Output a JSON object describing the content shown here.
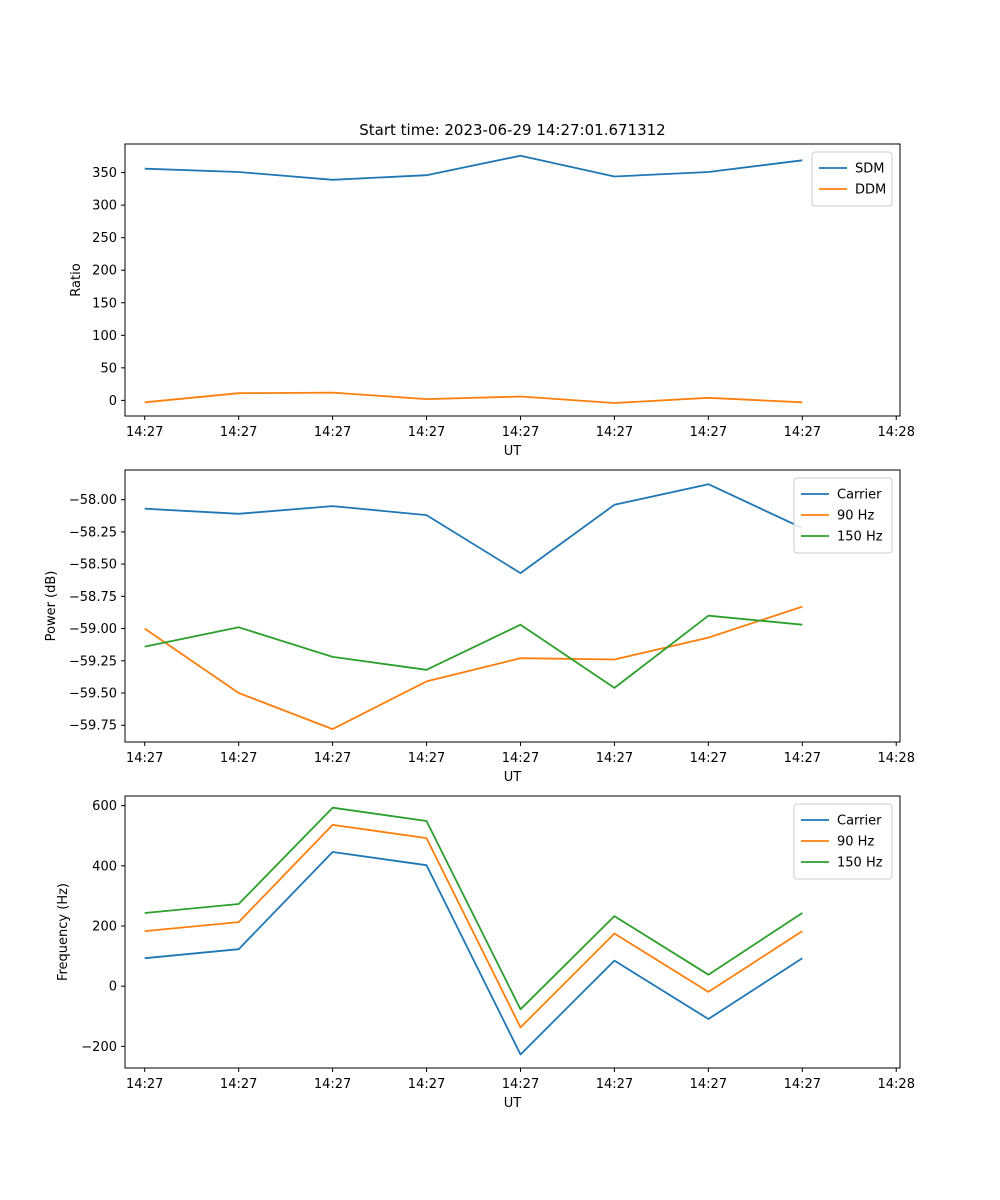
{
  "figure_title": "Start time: 2023-06-29 14:27:01.671312",
  "colors": {
    "c0": "#1f77b4",
    "c1": "#ff7f0e",
    "c2": "#2ca02c"
  },
  "chart_data": [
    {
      "type": "line",
      "title": "Start time: 2023-06-29 14:27:01.671312",
      "xlabel": "UT",
      "ylabel": "Ratio",
      "x": [
        1,
        2,
        3,
        4,
        5,
        6,
        7,
        8
      ],
      "xlim": [
        0.79,
        9.04
      ],
      "x_ticks": [
        1,
        2,
        3,
        4,
        5,
        6,
        7,
        8,
        9
      ],
      "x_tick_labels": [
        "14:27",
        "14:27",
        "14:27",
        "14:27",
        "14:27",
        "14:27",
        "14:27",
        "14:27",
        "14:28"
      ],
      "ylim": [
        -24,
        394
      ],
      "y_ticks": [
        0,
        50,
        100,
        150,
        200,
        250,
        300,
        350
      ],
      "y_tick_labels": [
        "0",
        "50",
        "100",
        "150",
        "200",
        "250",
        "300",
        "350"
      ],
      "legend_position": "top-right",
      "series": [
        {
          "name": "SDM",
          "color": "#1f77b4",
          "values": [
            356,
            351,
            339,
            346,
            376,
            344,
            351,
            369
          ]
        },
        {
          "name": "DDM",
          "color": "#ff7f0e",
          "values": [
            -3,
            11,
            12,
            2,
            6,
            -4,
            4,
            -3
          ]
        }
      ]
    },
    {
      "type": "line",
      "title": "",
      "xlabel": "UT",
      "ylabel": "Power (dB)",
      "x": [
        1,
        2,
        3,
        4,
        5,
        6,
        7,
        8
      ],
      "xlim": [
        0.79,
        9.04
      ],
      "x_ticks": [
        1,
        2,
        3,
        4,
        5,
        6,
        7,
        8,
        9
      ],
      "x_tick_labels": [
        "14:27",
        "14:27",
        "14:27",
        "14:27",
        "14:27",
        "14:27",
        "14:27",
        "14:27",
        "14:28"
      ],
      "ylim": [
        -59.88,
        -57.77
      ],
      "y_ticks": [
        -59.75,
        -59.5,
        -59.25,
        -59.0,
        -58.75,
        -58.5,
        -58.25,
        -58.0
      ],
      "y_tick_labels": [
        "−59.75",
        "−59.50",
        "−59.25",
        "−59.00",
        "−58.75",
        "−58.50",
        "−58.25",
        "−58.00"
      ],
      "legend_position": "top-right",
      "series": [
        {
          "name": "Carrier",
          "color": "#1f77b4",
          "values": [
            -58.07,
            -58.11,
            -58.05,
            -58.12,
            -58.57,
            -58.04,
            -57.88,
            -58.22
          ]
        },
        {
          "name": "90 Hz",
          "color": "#ff7f0e",
          "values": [
            -59.0,
            -59.5,
            -59.78,
            -59.41,
            -59.23,
            -59.24,
            -59.07,
            -58.83
          ]
        },
        {
          "name": "150 Hz",
          "color": "#2ca02c",
          "values": [
            -59.14,
            -58.99,
            -59.22,
            -59.32,
            -58.97,
            -59.46,
            -58.9,
            -58.97
          ]
        }
      ]
    },
    {
      "type": "line",
      "title": "",
      "xlabel": "UT",
      "ylabel": "Frequency (Hz)",
      "x": [
        1,
        2,
        3,
        4,
        5,
        6,
        7,
        8
      ],
      "xlim": [
        0.79,
        9.04
      ],
      "x_ticks": [
        1,
        2,
        3,
        4,
        5,
        6,
        7,
        8,
        9
      ],
      "x_tick_labels": [
        "14:27",
        "14:27",
        "14:27",
        "14:27",
        "14:27",
        "14:27",
        "14:27",
        "14:27",
        "14:28"
      ],
      "ylim": [
        -272,
        632
      ],
      "y_ticks": [
        -200,
        0,
        200,
        400,
        600
      ],
      "y_tick_labels": [
        "−200",
        "0",
        "200",
        "400",
        "600"
      ],
      "legend_position": "top-right",
      "series": [
        {
          "name": "Carrier",
          "color": "#1f77b4",
          "values": [
            93,
            123,
            446,
            402,
            -227,
            85,
            -109,
            93
          ]
        },
        {
          "name": "90 Hz",
          "color": "#ff7f0e",
          "values": [
            183,
            213,
            536,
            492,
            -137,
            175,
            -19,
            183
          ]
        },
        {
          "name": "150 Hz",
          "color": "#2ca02c",
          "values": [
            243,
            273,
            593,
            549,
            -77,
            233,
            38,
            243
          ]
        }
      ]
    }
  ]
}
